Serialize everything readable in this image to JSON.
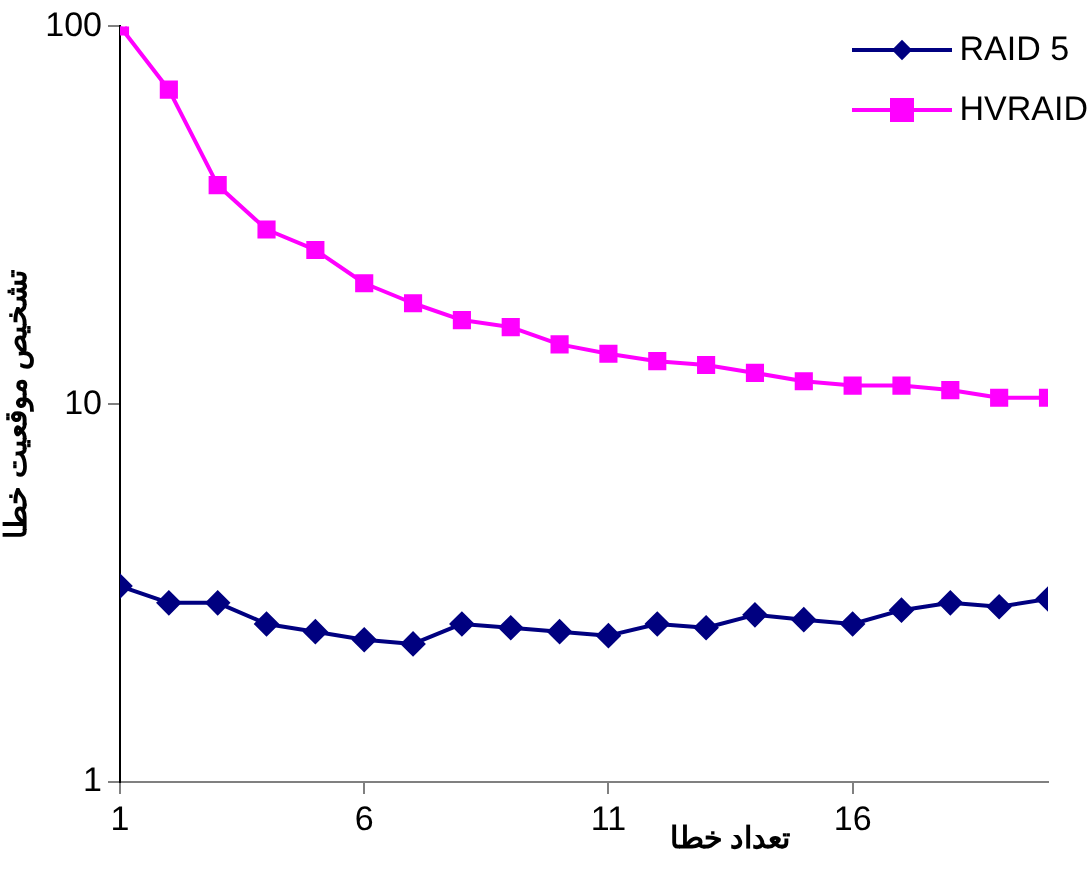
{
  "chart_data": {
    "type": "line",
    "xlabel": "تعداد خطا",
    "ylabel": "تشخیص موقعیت خطا",
    "x": [
      1,
      2,
      3,
      4,
      5,
      6,
      7,
      8,
      9,
      10,
      11,
      12,
      13,
      14,
      15,
      16,
      17,
      18,
      19,
      20
    ],
    "xlim": [
      1,
      20
    ],
    "xticks": [
      1,
      6,
      11,
      16
    ],
    "ylim": [
      1,
      100
    ],
    "yticks": [
      1,
      10,
      100
    ],
    "log": "y",
    "grid": false,
    "legend": "top right",
    "series": [
      {
        "name": "RAID 5",
        "color": "#000080",
        "marker": "diamond",
        "values": [
          3.3,
          2.98,
          2.98,
          2.62,
          2.5,
          2.38,
          2.32,
          2.62,
          2.56,
          2.5,
          2.44,
          2.62,
          2.56,
          2.77,
          2.69,
          2.62,
          2.85,
          2.98,
          2.91,
          3.05
        ]
      },
      {
        "name": "HVRAID",
        "color": "#ff00ff",
        "marker": "square",
        "values": [
          100,
          68,
          38,
          29,
          25.6,
          20.9,
          18.5,
          16.7,
          16,
          14.4,
          13.6,
          13,
          12.7,
          12.1,
          11.5,
          11.2,
          11.2,
          10.9,
          10.4,
          10.4
        ]
      }
    ]
  }
}
